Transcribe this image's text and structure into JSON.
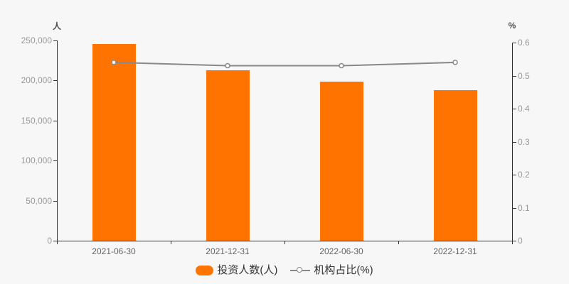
{
  "chart_data": {
    "type": "bar",
    "subtype": "bar-line-combo",
    "categories": [
      "2021-06-30",
      "2021-12-31",
      "2022-06-30",
      "2022-12-31"
    ],
    "series": [
      {
        "name": "投资人数(人)",
        "type": "bar",
        "y_axis": "left",
        "color": "#ff7300",
        "values": [
          246000,
          213000,
          199000,
          188000
        ]
      },
      {
        "name": "机构占比(%)",
        "type": "line",
        "y_axis": "right",
        "color": "#888888",
        "marker": "hollow-circle",
        "values": [
          0.54,
          0.53,
          0.53,
          0.54
        ]
      }
    ],
    "left_axis": {
      "name": "人",
      "min": 0,
      "max": 250000,
      "tick_values": [
        0,
        50000,
        100000,
        150000,
        200000,
        250000
      ],
      "tick_labels": [
        "0",
        "50,000",
        "100,000",
        "150,000",
        "200,000",
        "250,000"
      ]
    },
    "right_axis": {
      "name": "%",
      "min": 0,
      "max": 0.6,
      "tick_values": [
        0,
        0.1,
        0.2,
        0.3,
        0.4,
        0.5,
        0.6
      ],
      "tick_labels": [
        "0",
        "0.1",
        "0.2",
        "0.3",
        "0.4",
        "0.5",
        "0.6"
      ]
    },
    "grid_lines": false,
    "legend_position": "bottom"
  },
  "legend": {
    "items": [
      {
        "label": "投资人数(人)",
        "swatch": "bar",
        "color": "#ff7300"
      },
      {
        "label": "机构占比(%)",
        "swatch": "line",
        "color": "#888888"
      }
    ]
  },
  "colors": {
    "background": "#f7f7f7",
    "bar": "#ff7300",
    "line": "#888888",
    "marker_fill": "#ffffff",
    "axis_line": "#333333",
    "y_tick_label": "#999999",
    "x_tick_label": "#666666",
    "axis_name": "#4d4d4d",
    "legend_text": "#333333"
  }
}
